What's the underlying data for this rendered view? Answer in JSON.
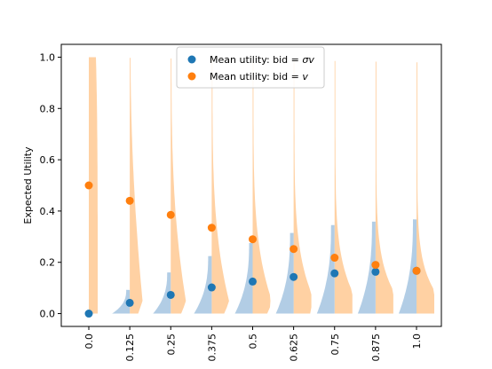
{
  "chart_data": {
    "type": "scatter",
    "title": "",
    "xlabel": "",
    "ylabel": "Expected Utility",
    "ylim": [
      -0.05,
      1.05
    ],
    "y_ticks": [
      "0.0",
      "0.2",
      "0.4",
      "0.6",
      "0.8",
      "1.0"
    ],
    "y_tick_values": [
      0.0,
      0.2,
      0.4,
      0.6,
      0.8,
      1.0
    ],
    "categories": [
      "0.0",
      "0.125",
      "0.25",
      "0.375",
      "0.5",
      "0.625",
      "0.75",
      "0.875",
      "1.0"
    ],
    "grid": false,
    "legend": {
      "placement": "top-center",
      "entries": [
        {
          "label_prefix": "Mean utility: bid = ",
          "label_math": "σv",
          "color": "#1f77b4"
        },
        {
          "label_prefix": "Mean utility: bid = ",
          "label_math": "v",
          "color": "#ff7f0e"
        }
      ]
    },
    "series": [
      {
        "key": "shaded",
        "color": "#1f77b4",
        "values": [
          0.0,
          0.042,
          0.073,
          0.102,
          0.125,
          0.143,
          0.157,
          0.163,
          0.167
        ]
      },
      {
        "key": "truthful",
        "color": "#ff7f0e",
        "values": [
          0.5,
          0.44,
          0.385,
          0.335,
          0.29,
          0.252,
          0.218,
          0.19,
          0.167
        ]
      }
    ],
    "distribution_colors": {
      "shaded": "#aac8e2",
      "truthful": "#ffcc99"
    }
  }
}
